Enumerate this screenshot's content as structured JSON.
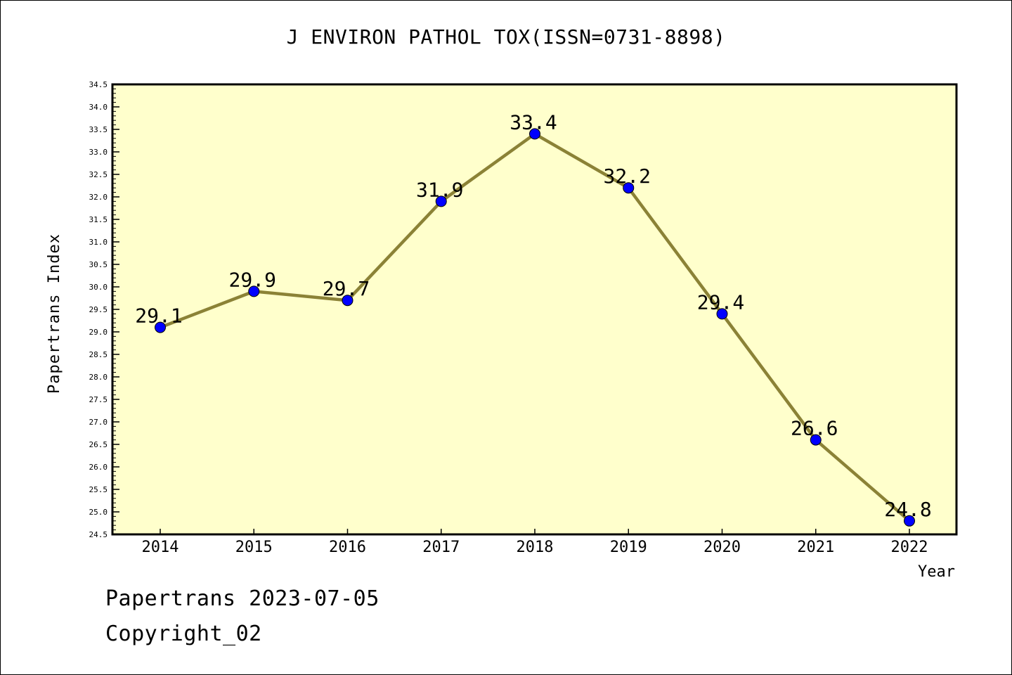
{
  "chart_data": {
    "type": "line",
    "title": "J ENVIRON PATHOL TOX(ISSN=0731-8898)",
    "xlabel": "Year",
    "ylabel": "Papertrans Index",
    "categories": [
      "2014",
      "2015",
      "2016",
      "2017",
      "2018",
      "2019",
      "2020",
      "2021",
      "2022"
    ],
    "series": [
      {
        "values": [
          29.1,
          29.9,
          29.7,
          31.9,
          33.4,
          32.2,
          29.4,
          26.6,
          24.8
        ],
        "labels": [
          "29.1",
          "29.9",
          "29.7",
          "31.9",
          "33.4",
          "32.2",
          "29.4",
          "26.6",
          "24.8"
        ],
        "line_color": "#8b8236",
        "marker_color": "#0000ff"
      }
    ],
    "ylim": [
      24.5,
      34.5
    ],
    "yticks": [
      "24.5",
      "25.0",
      "25.5",
      "26.0",
      "26.5",
      "27.0",
      "27.5",
      "28.0",
      "28.5",
      "29.0",
      "29.5",
      "30.0",
      "30.5",
      "31.0",
      "31.5",
      "32.0",
      "32.5",
      "33.0",
      "33.5",
      "34.0",
      "34.5"
    ],
    "plot_background": "#ffffcc",
    "grid": false,
    "legend": "none"
  },
  "footer": {
    "date_text": "Papertrans 2023-07-05",
    "copyright_text": "Copyright_02"
  }
}
